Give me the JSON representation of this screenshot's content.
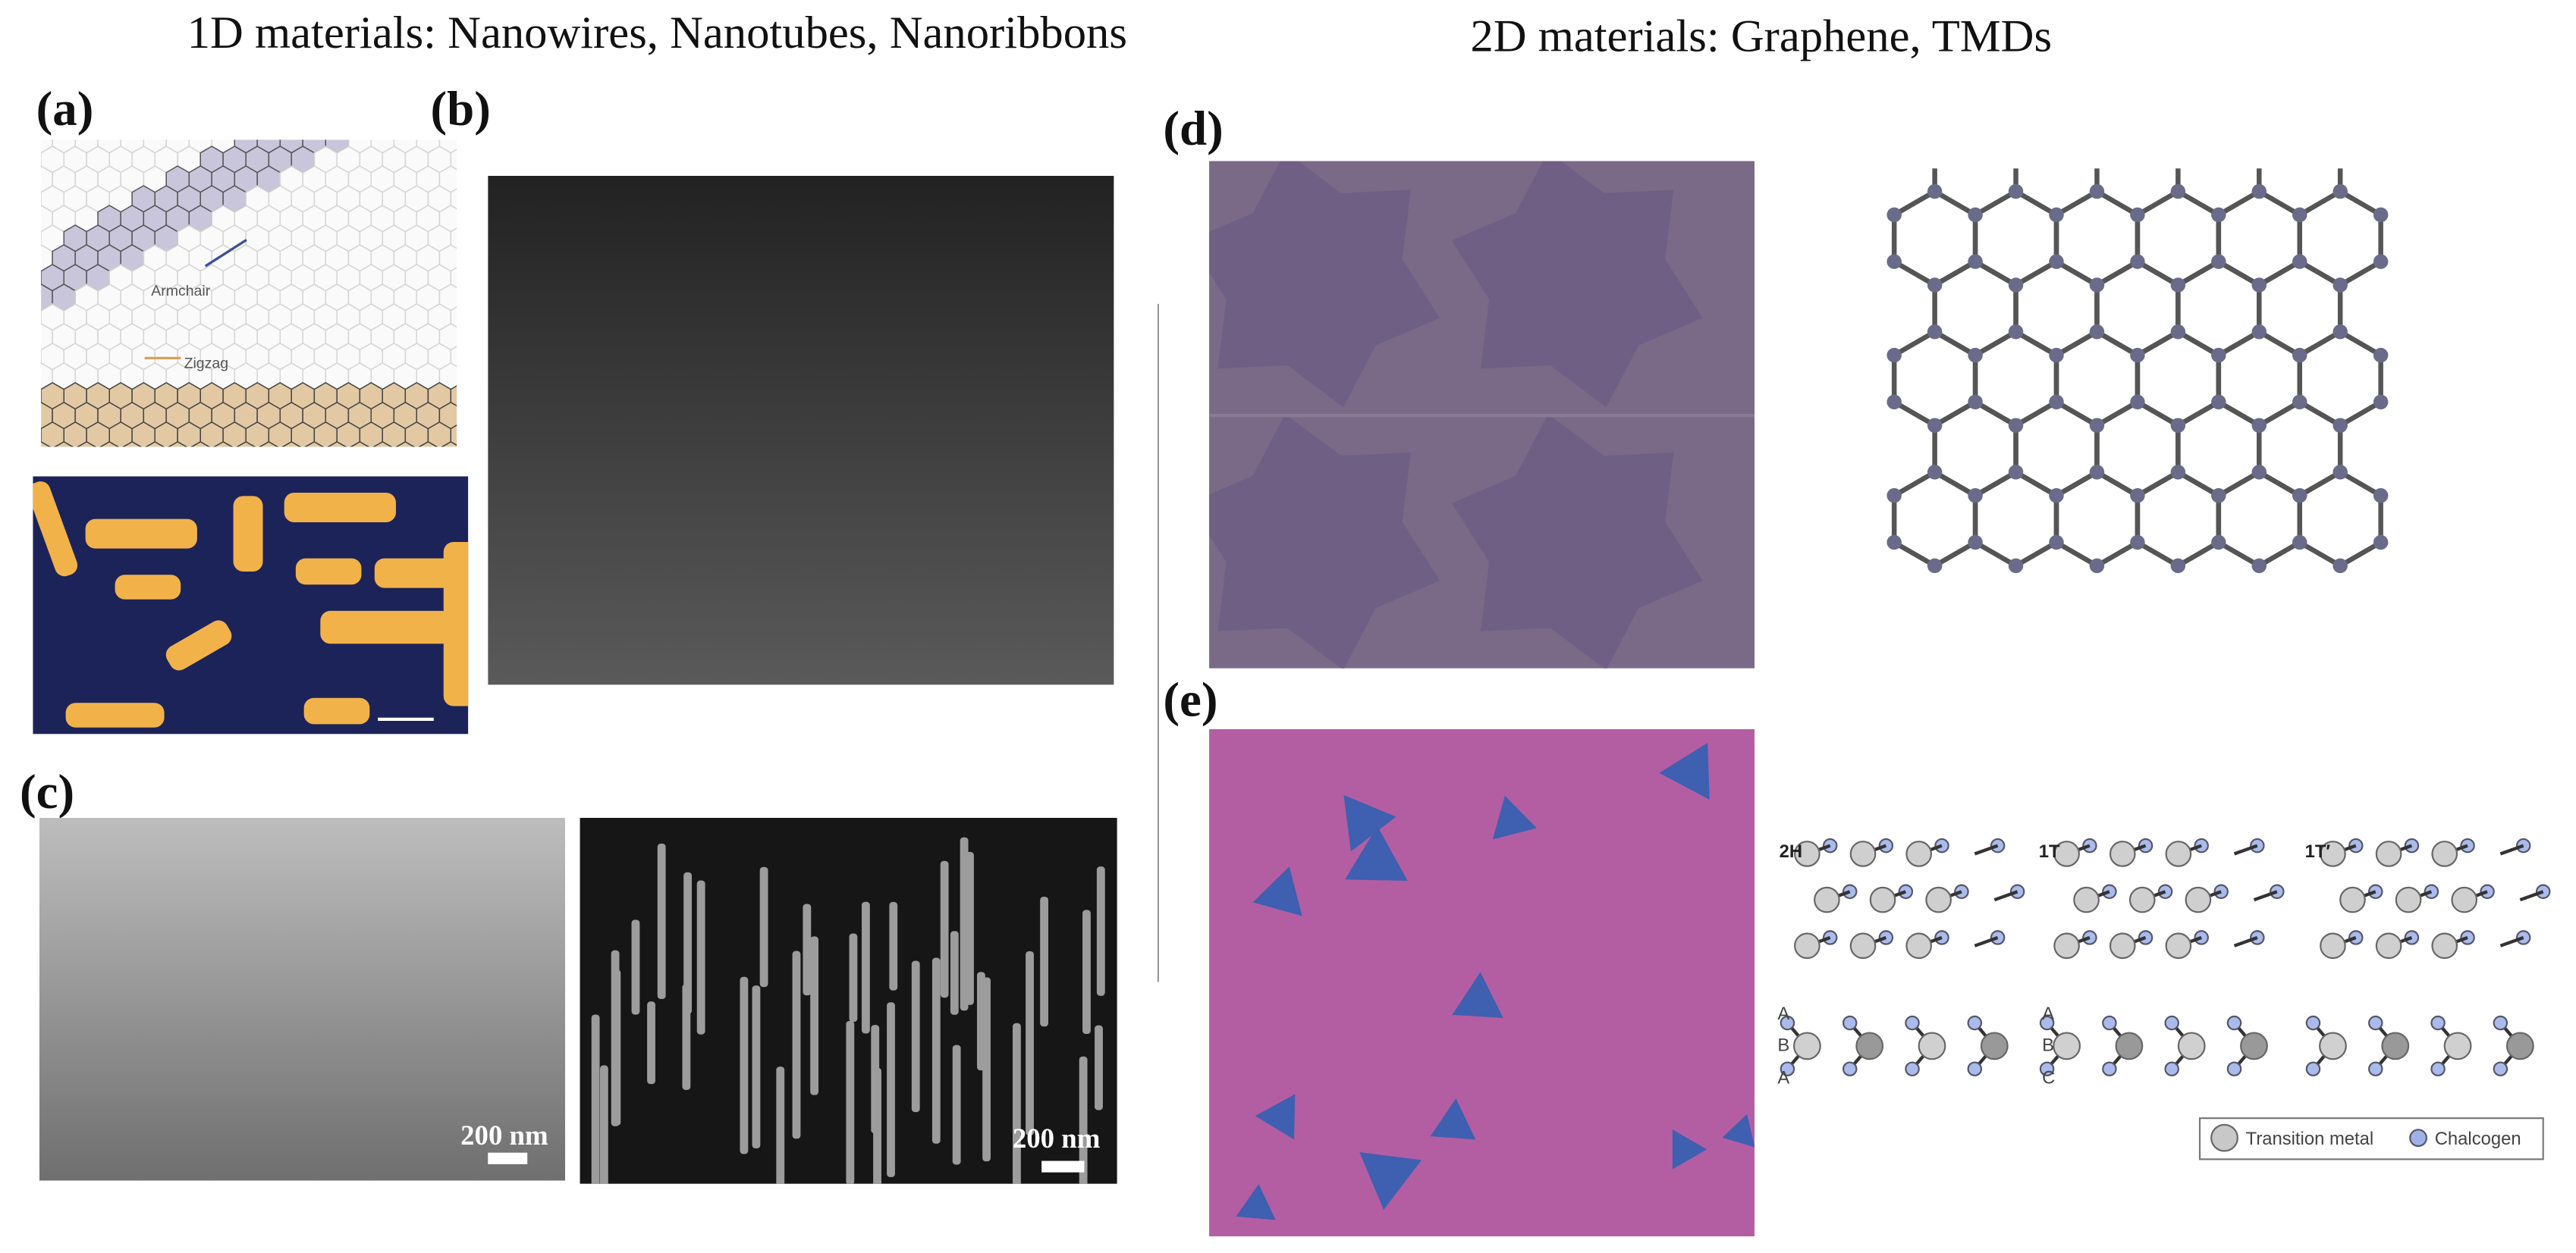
{
  "header": {
    "left_title": "1D materials: Nanowires, Nanotubes, Nanoribbons",
    "right_title": "2D materials: Graphene, TMDs"
  },
  "panels": [
    {
      "label": "(a)",
      "annotations": [
        "Armchair",
        "Zigzag"
      ]
    },
    {
      "label": "(b)"
    },
    {
      "label": "(c)",
      "scale_bars": [
        "200 nm",
        "200 nm"
      ]
    },
    {
      "label": "(d)"
    },
    {
      "label": "(e)",
      "phases": [
        "2H",
        "1T",
        "1T′"
      ],
      "stackings": [
        [
          "A",
          "B",
          "A"
        ],
        [
          "A",
          "B",
          "C"
        ]
      ],
      "legend": [
        "Transition metal",
        "Chalcogen"
      ]
    }
  ]
}
